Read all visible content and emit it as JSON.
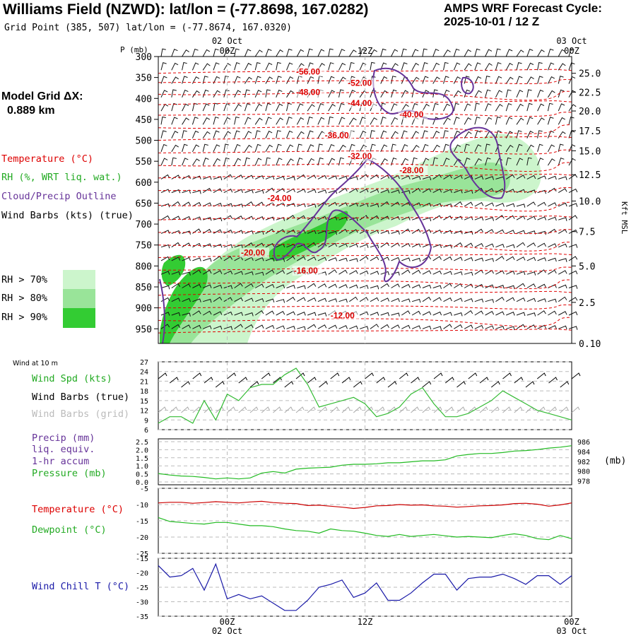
{
  "header": {
    "title": "Williams Field (NZWD):  lat/lon = (-77.8698, 167.0282)",
    "grid_point": "Grid Point (385, 507) lat/lon = (-77.8674, 167.0320)",
    "cycle_line1": "AMPS WRF Forecast Cycle:",
    "cycle_line2": "2025-10-01 / 12  Z"
  },
  "sidebar": {
    "model_grid_label": "Model Grid ΔX:",
    "model_grid_value": "0.889 km",
    "legend": {
      "temperature": "Temperature (°C)",
      "rh": "RH (%, WRT liq. wat.)",
      "cloud": "Cloud/Precip Outline",
      "wind": "Wind Barbs (kts) (true)"
    },
    "rh_thresholds": [
      "RH > 70%",
      "RH > 80%",
      "RH > 90%"
    ]
  },
  "colors": {
    "temperature": "#ff0000",
    "rh": "#33bb33",
    "cloud": "#663399",
    "wind": "#000000",
    "wind_grid": "#aaaaaa",
    "precip": "#663399",
    "pressure": "#22bb22",
    "dewpoint": "#22bb22",
    "windchill": "#1a1aa8",
    "rh70": "#ccf5cc",
    "rh80": "#99e499",
    "rh90": "#33cc33"
  },
  "chart_data": [
    {
      "type": "time-height cross-section",
      "p_axis_label": "P (mb)",
      "pressure_levels": [
        300,
        350,
        400,
        450,
        500,
        550,
        600,
        650,
        700,
        750,
        800,
        850,
        900,
        950
      ],
      "p_range": [
        300,
        985
      ],
      "right_axis_label": "Kft MSL",
      "kft_ticks": [
        {
          "label": "25.0",
          "p": 340
        },
        {
          "label": "22.5",
          "p": 385
        },
        {
          "label": "20.0",
          "p": 430
        },
        {
          "label": "17.5",
          "p": 477
        },
        {
          "label": "15.0",
          "p": 525
        },
        {
          "label": "12.5",
          "p": 582
        },
        {
          "label": "10.0",
          "p": 645
        },
        {
          "label": "7.5",
          "p": 718
        },
        {
          "label": "5.0",
          "p": 800
        },
        {
          "label": "2.5",
          "p": 887
        },
        {
          "label": "0.10",
          "p": 985
        }
      ],
      "time_hours": [
        -6,
        30
      ],
      "time_ticks": [
        {
          "h": 0,
          "label": "00Z",
          "date": "02 Oct"
        },
        {
          "h": 12,
          "label": "12Z",
          "date": ""
        },
        {
          "h": 30,
          "label": "00Z",
          "date": "03 Oct"
        }
      ],
      "temperature_labels": [
        {
          "value": "-56.00",
          "h": 6.0,
          "p": 343
        },
        {
          "value": "-52.00",
          "h": 10.5,
          "p": 370
        },
        {
          "value": "-48.00",
          "h": 6.0,
          "p": 392
        },
        {
          "value": "-44.00",
          "h": 10.5,
          "p": 418
        },
        {
          "value": "-40.00",
          "h": 15.0,
          "p": 445
        },
        {
          "value": "-36.00",
          "h": 8.5,
          "p": 495
        },
        {
          "value": "-32.00",
          "h": 10.5,
          "p": 545
        },
        {
          "value": "-28.00",
          "h": 15.0,
          "p": 578
        },
        {
          "value": "-24.00",
          "h": 3.5,
          "p": 645
        },
        {
          "value": "-20.00",
          "h": 1.2,
          "p": 775
        },
        {
          "value": "-16.00",
          "h": 5.8,
          "p": 818
        },
        {
          "value": "-12.00",
          "h": 9.0,
          "p": 925
        }
      ]
    },
    {
      "type": "line",
      "title": "Wind at 10 m",
      "labels": [
        "Wind Spd (kts)",
        "Wind Barbs (true)",
        "Wind Barbs (grid)"
      ],
      "y_ticks": [
        6,
        9,
        12,
        15,
        18,
        21,
        24,
        27
      ],
      "ylim": [
        6,
        27
      ],
      "x_hours": [
        -6,
        -5,
        -4,
        -3,
        -2,
        -1,
        0,
        1,
        2,
        3,
        4,
        5,
        6,
        7,
        8,
        9,
        10,
        11,
        12,
        13,
        14,
        15,
        16,
        17,
        18,
        19,
        20,
        21,
        22,
        23,
        24,
        25,
        26,
        27,
        28,
        29,
        30
      ],
      "wind_speed": [
        8,
        10,
        10,
        8,
        15,
        9,
        17,
        15,
        19,
        20,
        20,
        23,
        25,
        20,
        13,
        14,
        15,
        16,
        14,
        10,
        11,
        13,
        17,
        19,
        14,
        10,
        10,
        11,
        13,
        15,
        18,
        16,
        14,
        12,
        11,
        10,
        9
      ]
    },
    {
      "type": "line",
      "labels": [
        "Precip (mm)",
        "liq. equiv.",
        "1-hr accum",
        "Pressure (mb)"
      ],
      "left_ticks": [
        "0.0",
        "0.5",
        "1.0",
        "1.5",
        "2.0",
        "2.5"
      ],
      "right_ticks": [
        "978",
        "980",
        "982",
        "984",
        "986"
      ],
      "right_unit": "(mb)",
      "ylim": [
        977.2,
        986.6
      ],
      "x_hours": [
        -6,
        -5,
        -4,
        -3,
        -2,
        -1,
        0,
        1,
        2,
        3,
        4,
        5,
        6,
        7,
        8,
        9,
        10,
        11,
        12,
        13,
        14,
        15,
        16,
        17,
        18,
        19,
        20,
        21,
        22,
        23,
        24,
        25,
        26,
        27,
        28,
        29,
        30
      ],
      "pressure": [
        979.5,
        979.2,
        979.0,
        978.9,
        978.7,
        978.4,
        978.6,
        978.4,
        978.6,
        979.6,
        979.9,
        979.6,
        980.4,
        980.6,
        980.7,
        980.8,
        981.2,
        981.4,
        981.4,
        981.5,
        981.7,
        981.7,
        981.9,
        982.1,
        982.1,
        982.3,
        983.1,
        983.4,
        983.6,
        983.6,
        983.8,
        984.1,
        984.2,
        984.4,
        984.7,
        984.9,
        985.2
      ],
      "precip": []
    },
    {
      "type": "line",
      "labels": [
        "Temperature (°C)",
        "Dewpoint (°C)"
      ],
      "y_ticks": [
        -5,
        -10,
        -15,
        -20,
        -25
      ],
      "ylim": [
        -25,
        -5
      ],
      "x_hours": [
        -6,
        -5,
        -4,
        -3,
        -2,
        -1,
        0,
        1,
        2,
        3,
        4,
        5,
        6,
        7,
        8,
        9,
        10,
        11,
        12,
        13,
        14,
        15,
        16,
        17,
        18,
        19,
        20,
        21,
        22,
        23,
        24,
        25,
        26,
        27,
        28,
        29,
        30
      ],
      "temperature": [
        -9.5,
        -9.3,
        -9.3,
        -9.6,
        -9.4,
        -9.1,
        -9.3,
        -9.5,
        -9.2,
        -9.0,
        -9.4,
        -9.6,
        -9.7,
        -10.3,
        -10.2,
        -10.5,
        -10.8,
        -11.2,
        -10.9,
        -10.4,
        -10.3,
        -10.0,
        -10.2,
        -10.1,
        -10.4,
        -10.5,
        -10.8,
        -10.6,
        -10.4,
        -10.3,
        -10.1,
        -9.7,
        -9.6,
        -9.9,
        -10.5,
        -10.1,
        -9.5
      ],
      "dewpoint": [
        -14.0,
        -15.2,
        -15.5,
        -15.8,
        -16.0,
        -15.5,
        -15.5,
        -16.0,
        -16.5,
        -16.5,
        -16.8,
        -17.5,
        -18.0,
        -18.2,
        -18.8,
        -17.5,
        -18.0,
        -18.2,
        -18.8,
        -19.5,
        -19.8,
        -19.2,
        -19.8,
        -19.5,
        -19.2,
        -19.6,
        -20.0,
        -19.8,
        -20.0,
        -20.2,
        -19.5,
        -19.0,
        -19.5,
        -20.5,
        -20.8,
        -19.5,
        -20.5
      ]
    },
    {
      "type": "line",
      "labels": [
        "Wind Chill T (°C)"
      ],
      "y_ticks": [
        -15,
        -20,
        -25,
        -30,
        -35
      ],
      "ylim": [
        -35,
        -15
      ],
      "x_hours": [
        -6,
        -5,
        -4,
        -3,
        -2,
        -1,
        0,
        1,
        2,
        3,
        4,
        5,
        6,
        7,
        8,
        9,
        10,
        11,
        12,
        13,
        14,
        15,
        16,
        17,
        18,
        19,
        20,
        21,
        22,
        23,
        24,
        25,
        26,
        27,
        28,
        29,
        30
      ],
      "windchill": [
        -17.5,
        -21.5,
        -21.0,
        -18.5,
        -26.0,
        -17.0,
        -29.0,
        -27.5,
        -29.0,
        -28.0,
        -30.5,
        -33.0,
        -33.0,
        -29.5,
        -25.0,
        -24.0,
        -22.5,
        -28.5,
        -27.0,
        -23.5,
        -29.5,
        -29.5,
        -27.0,
        -23.5,
        -20.5,
        -20.5,
        -26.0,
        -22.0,
        -21.5,
        -21.5,
        -20.5,
        -22.0,
        -24.0,
        -21.0,
        -21.0,
        -24.0,
        -21.0
      ]
    }
  ],
  "bottom_axis": {
    "ticks": [
      {
        "label": "00Z",
        "date": "02 Oct"
      },
      {
        "label": "12Z",
        "date": ""
      },
      {
        "label": "00Z",
        "date": "03 Oct"
      }
    ]
  }
}
